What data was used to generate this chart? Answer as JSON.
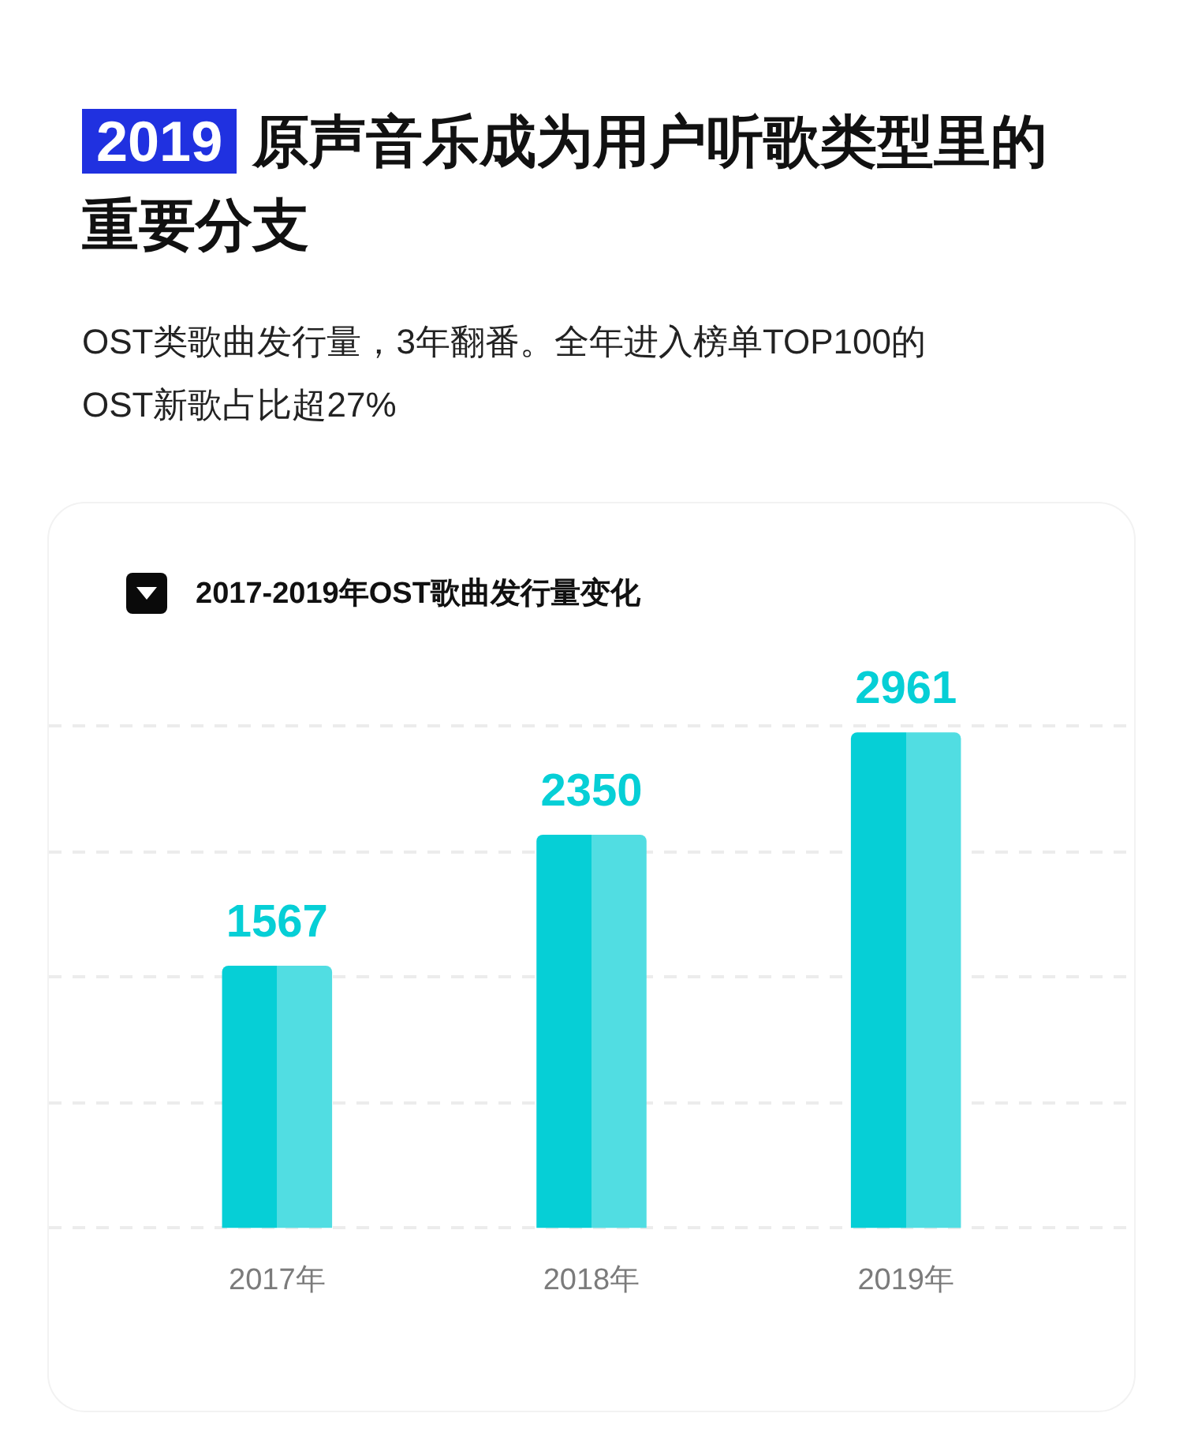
{
  "chart_data": {
    "type": "bar",
    "title": "2019 原声音乐成为用户听歌类型里的重要分支",
    "subtitle": "OST类歌曲发行量，3年翻番。全年进入榜单TOP100的OST新歌占比超27%",
    "annotations": [
      "2017-2019年OST歌曲发行量变化"
    ],
    "categories": [
      "2017年",
      "2018年",
      "2019年"
    ],
    "values": [
      1567,
      2350,
      2961
    ],
    "color": "#06cfd6",
    "ylim": [
      0,
      3000
    ],
    "yticks": [
      {
        "value": 0,
        "label": null
      },
      {
        "value": 750,
        "label": null
      },
      {
        "value": 1500,
        "label": null
      },
      {
        "value": 2250,
        "label": null
      },
      {
        "value": 3000,
        "label": null
      }
    ],
    "grid": "y",
    "data_labels": true,
    "tick_labels": "x",
    "legend": false
  }
}
